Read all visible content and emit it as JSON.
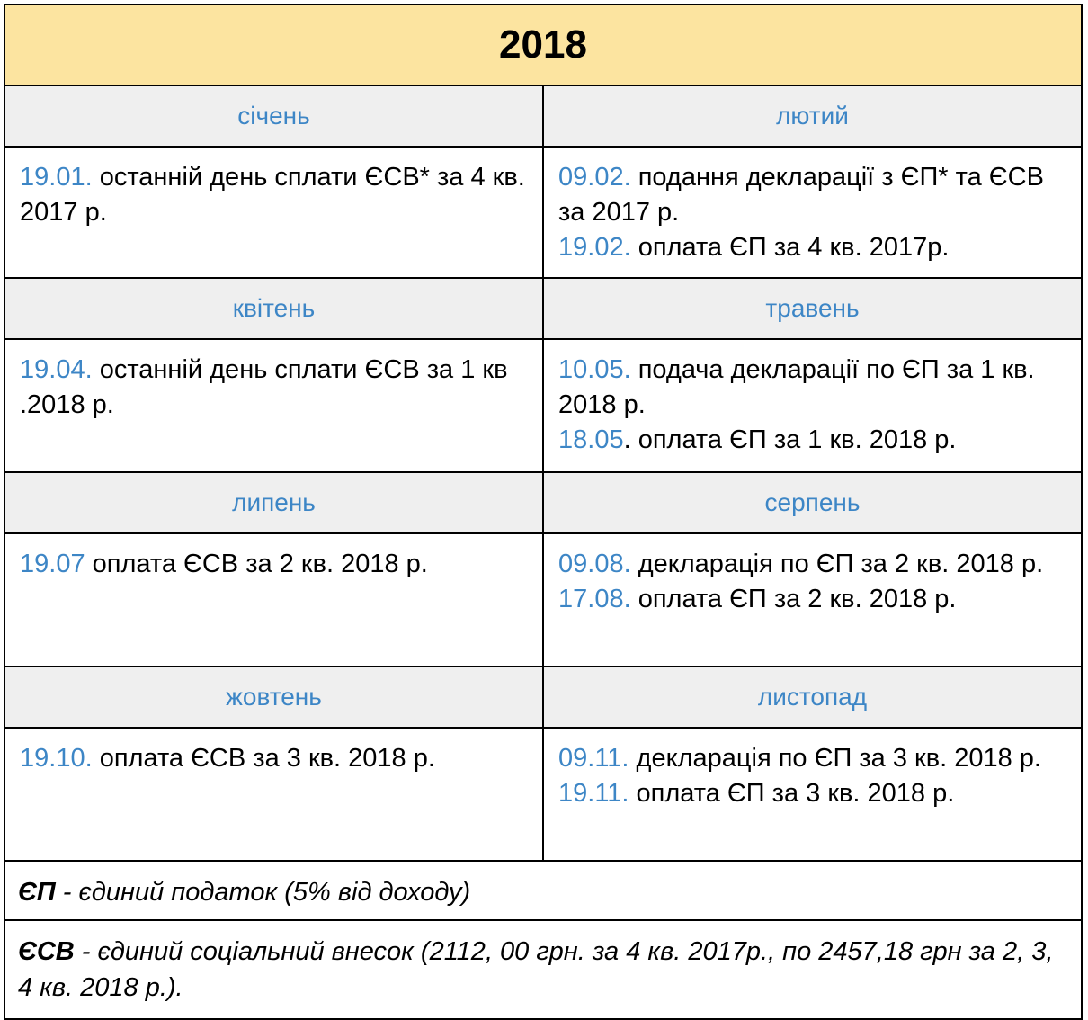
{
  "title": "2018",
  "rows": [
    {
      "left": {
        "month": "січень",
        "entries": [
          {
            "date": "19.01.",
            "text": " останній день сплати ЄСВ* за 4 кв. 2017 р."
          }
        ]
      },
      "right": {
        "month": "лютий",
        "entries": [
          {
            "date": "09.02.",
            "text": " подання декларації з ЄП* та ЄСВ за 2017 р."
          },
          {
            "date": "19.02.",
            "text": " оплата ЄП за 4 кв. 2017р."
          }
        ]
      }
    },
    {
      "left": {
        "month": "квітень",
        "entries": [
          {
            "date": "19.04.",
            "text": " останній день сплати ЄСВ за 1 кв .2018 р."
          }
        ]
      },
      "right": {
        "month": "травень",
        "entries": [
          {
            "date": "10.05.",
            "text": " подача декларації по ЄП за 1 кв. 2018 р."
          },
          {
            "date": "18.05",
            "text": ". оплата ЄП за 1 кв. 2018 р."
          }
        ]
      }
    },
    {
      "left": {
        "month": "липень",
        "entries": [
          {
            "date": "19.07",
            "text": " оплата ЄСВ за 2 кв. 2018 р."
          }
        ]
      },
      "right": {
        "month": "серпень",
        "entries": [
          {
            "date": "09.08.",
            "text": " декларація по ЄП за 2 кв. 2018 р."
          },
          {
            "date": "17.08.",
            "text": " оплата ЄП за 2 кв. 2018 р."
          }
        ]
      }
    },
    {
      "left": {
        "month": "жовтень",
        "entries": [
          {
            "date": "19.10.",
            "text": " оплата ЄСВ за 3 кв. 2018 р."
          }
        ]
      },
      "right": {
        "month": "листопад",
        "entries": [
          {
            "date": "09.11.",
            "text": " декларація по ЄП за 3 кв. 2018 р."
          },
          {
            "date": "19.11.",
            "text": " оплата ЄП за 3 кв. 2018 р."
          }
        ]
      }
    }
  ],
  "notes": [
    {
      "abbr": "ЄП",
      "text": " - єдиний податок (5% від доходу)"
    },
    {
      "abbr": "ЄСВ",
      "text": " - єдиний соціальний внесок (2112, 00 грн. за 4 кв. 2017р., по 2457,18 грн за 2, 3, 4 кв. 2018 р.)."
    }
  ],
  "colors": {
    "date": "#3d86c6",
    "month": "#3d86c6",
    "title_background": "#fce4a0",
    "month_background": "#efefef"
  }
}
